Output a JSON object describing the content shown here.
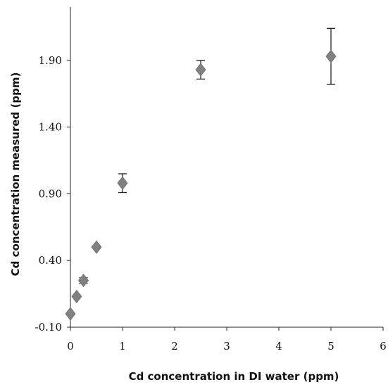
{
  "chart_data": {
    "type": "scatter",
    "xlabel": "Cd concentration in DI water (ppm)",
    "ylabel": "Cd concentration measured (ppm)",
    "xlim": [
      0,
      6
    ],
    "ylim": [
      -0.1,
      2.3
    ],
    "x_ticks": [
      0,
      1,
      2,
      3,
      4,
      5,
      6
    ],
    "y_ticks": [
      -0.1,
      0.4,
      0.9,
      1.4,
      1.9
    ],
    "x_tick_labels": [
      "0",
      "1",
      "2",
      "3",
      "4",
      "5",
      "6"
    ],
    "y_tick_labels": [
      "-0.10",
      "0.40",
      "0.90",
      "1.40",
      "1.90"
    ],
    "grid": false,
    "marker": "diamond",
    "marker_color": "#808080",
    "points": [
      {
        "x": 0.0,
        "y": 0.0,
        "err": 0.0
      },
      {
        "x": 0.12,
        "y": 0.13,
        "err": 0.0
      },
      {
        "x": 0.25,
        "y": 0.25,
        "err": 0.02
      },
      {
        "x": 0.5,
        "y": 0.5,
        "err": 0.0
      },
      {
        "x": 1.0,
        "y": 0.98,
        "err": 0.07
      },
      {
        "x": 2.5,
        "y": 1.83,
        "err": 0.07
      },
      {
        "x": 5.0,
        "y": 1.93,
        "err": 0.21
      }
    ]
  }
}
